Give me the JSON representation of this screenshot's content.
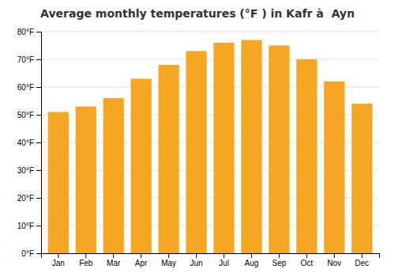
{
  "chart_data": {
    "type": "bar",
    "title": "Average monthly temperatures (°F ) in Kafr à  Ayn",
    "categories": [
      "Jan",
      "Feb",
      "Mar",
      "Apr",
      "May",
      "Jun",
      "Jul",
      "Aug",
      "Sep",
      "Oct",
      "Nov",
      "Dec"
    ],
    "values": [
      51,
      53,
      56,
      63,
      68,
      73,
      76,
      77,
      75,
      70,
      62,
      54
    ],
    "color": "#F5A623",
    "ylim": [
      0,
      80
    ],
    "yticks": [
      {
        "value": 0,
        "label": "0°F"
      },
      {
        "value": 10,
        "label": "10°F"
      },
      {
        "value": 20,
        "label": "20°F"
      },
      {
        "value": 30,
        "label": "30°F"
      },
      {
        "value": 40,
        "label": "40°F"
      },
      {
        "value": 50,
        "label": "50°F"
      },
      {
        "value": 60,
        "label": "60°F"
      },
      {
        "value": 70,
        "label": "70°F"
      },
      {
        "value": 80,
        "label": "80°F"
      }
    ],
    "grid": true
  }
}
